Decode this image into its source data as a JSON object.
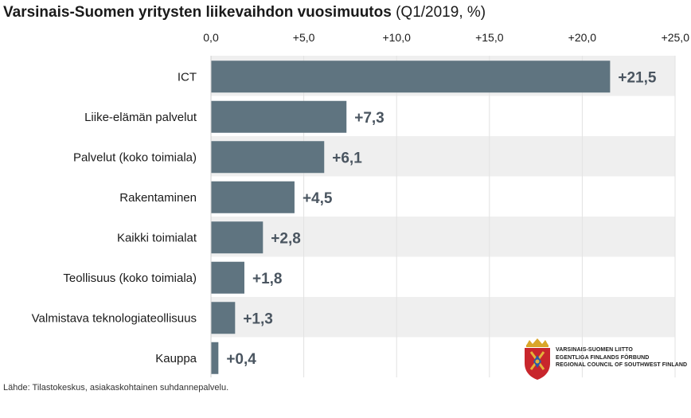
{
  "title": {
    "main": "Varsinais-Suomen yritysten liikevaihdon vuosimuutos",
    "sub": "(Q1/2019, %)"
  },
  "source": "Lähde: Tilastokeskus, asiakaskohtainen suhdannepalvelu.",
  "logo": {
    "lines": [
      "VARSINAIS-SUOMEN LIITTO",
      "EGENTLIGA FINLANDS FÖRBUND",
      "REGIONAL COUNCIL OF SOUTHWEST FINLAND"
    ],
    "emblem": "coat-of-arms-icon"
  },
  "colors": {
    "bar": "#5f7480",
    "band": "#efefef",
    "grid": "#ffffff",
    "value_label": "#4a5560"
  },
  "chart_data": {
    "type": "bar",
    "orientation": "horizontal",
    "title": "Varsinais-Suomen yritysten liikevaihdon vuosimuutos (Q1/2019, %)",
    "categories": [
      "ICT",
      "Liike-elämän palvelut",
      "Palvelut (koko toimiala)",
      "Rakentaminen",
      "Kaikki toimialat",
      "Teollisuus (koko toimiala)",
      "Valmistava teknologiateollisuus",
      "Kauppa"
    ],
    "values": [
      21.5,
      7.3,
      6.1,
      4.5,
      2.8,
      1.8,
      1.3,
      0.4
    ],
    "value_labels": [
      "+21,5",
      "+7,3",
      "+6,1",
      "+4,5",
      "+2,8",
      "+1,8",
      "+1,3",
      "+0,4"
    ],
    "xlim": [
      0,
      25
    ],
    "xticks": [
      0,
      5,
      10,
      15,
      20,
      25
    ],
    "xtick_labels": [
      "0,0",
      "+5,0",
      "+10,0",
      "+15,0",
      "+20,0",
      "+25,0"
    ],
    "xaxis_position": "top",
    "grid": true,
    "legend": "none"
  }
}
